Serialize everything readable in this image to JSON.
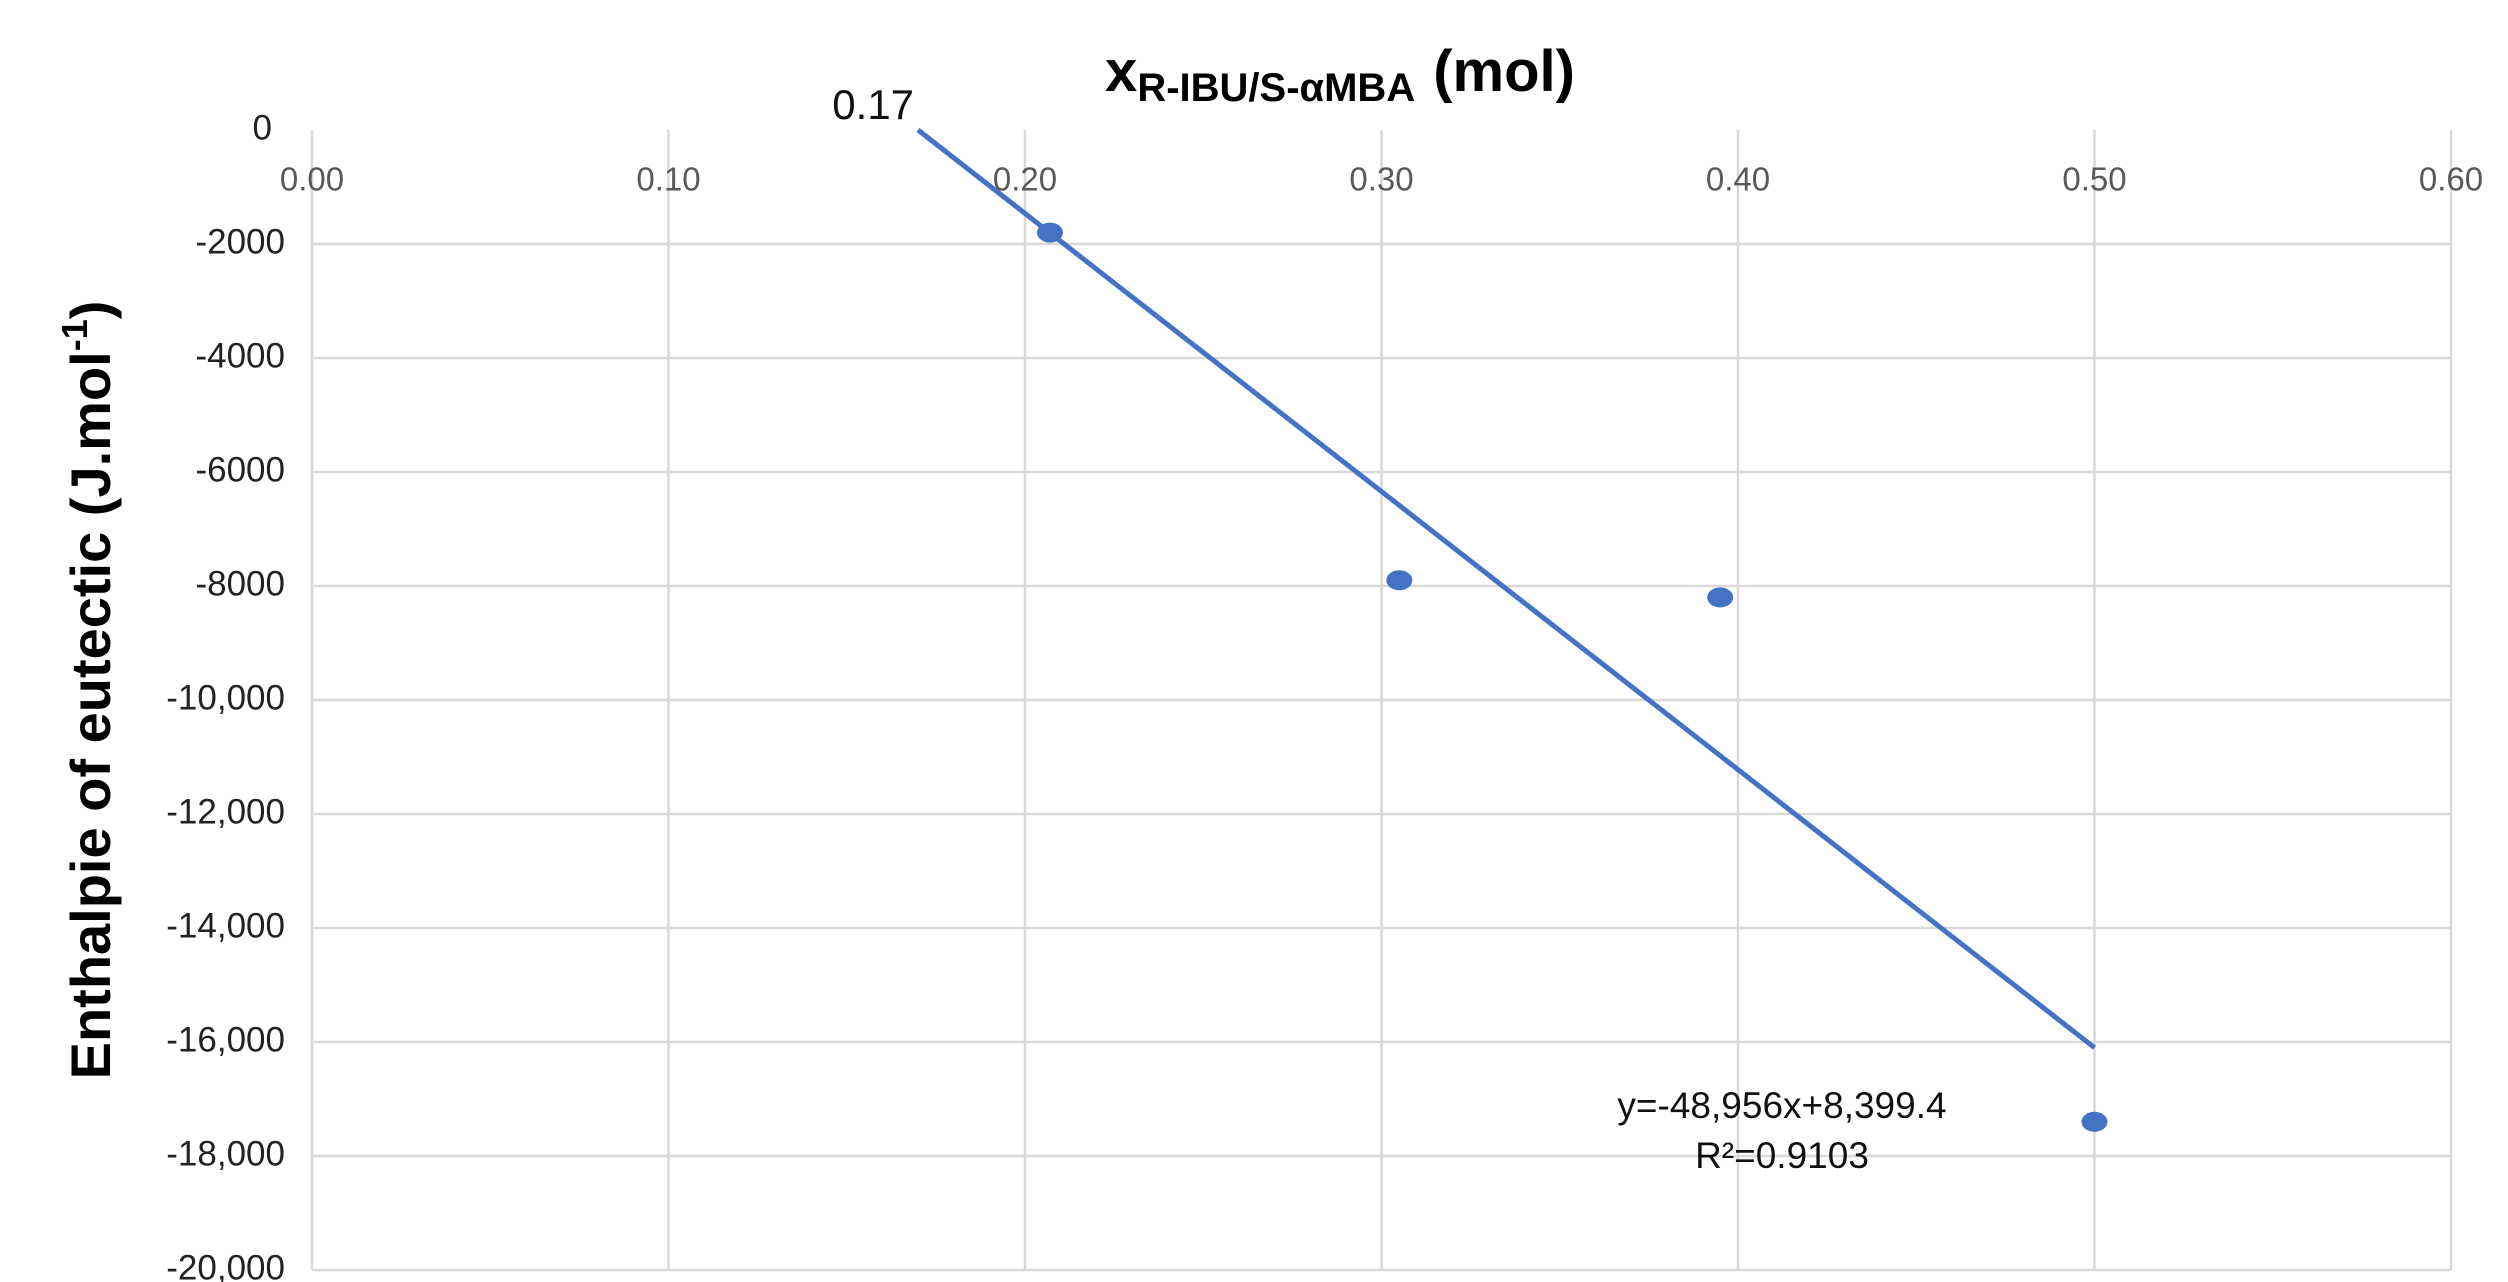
{
  "chart_data": {
    "type": "scatter",
    "x_title": {
      "main": "x",
      "sub": "R-IBU/S-αMBA",
      "unit": "(mol)"
    },
    "y_title": {
      "main": "Enthalpie of eutectic (J.mol",
      "sup": "-1",
      "end": ")"
    },
    "x": [
      0.207,
      0.305,
      0.395,
      0.5
    ],
    "series": [
      {
        "name": "Enthalpie",
        "color": "#4472c4",
        "values": [
          -1800,
          -7900,
          -8200,
          -17400
        ]
      }
    ],
    "trendline": {
      "color": "#4472c4",
      "x": [
        0.17,
        0.5
      ],
      "values": [
        0,
        -16100
      ]
    },
    "annotations": [
      "0.17",
      "y=-48,956x+8,399.4",
      "R²=0.9103"
    ],
    "xlim": [
      0,
      0.6
    ],
    "xticks": [
      {
        "value": 0,
        "label": "0.00"
      },
      {
        "value": 0.1,
        "label": "0.10"
      },
      {
        "value": 0.2,
        "label": "0.20"
      },
      {
        "value": 0.3,
        "label": "0.30"
      },
      {
        "value": 0.4,
        "label": "0.40"
      },
      {
        "value": 0.5,
        "label": "0.50"
      },
      {
        "value": 0.6,
        "label": "0.60"
      }
    ],
    "ylim": [
      -20000,
      0
    ],
    "yticks": [
      0,
      -2000,
      -4000,
      -6000,
      -8000,
      {
        "value": -10000,
        "label": "-10,000"
      },
      {
        "value": -12000,
        "label": "-12,000"
      },
      {
        "value": -14000,
        "label": "-14,000"
      },
      {
        "value": -16000,
        "label": "-16,000"
      },
      {
        "value": -18000,
        "label": "-18,000"
      },
      {
        "value": -20000,
        "label": "-20,000"
      }
    ],
    "grid": true
  }
}
